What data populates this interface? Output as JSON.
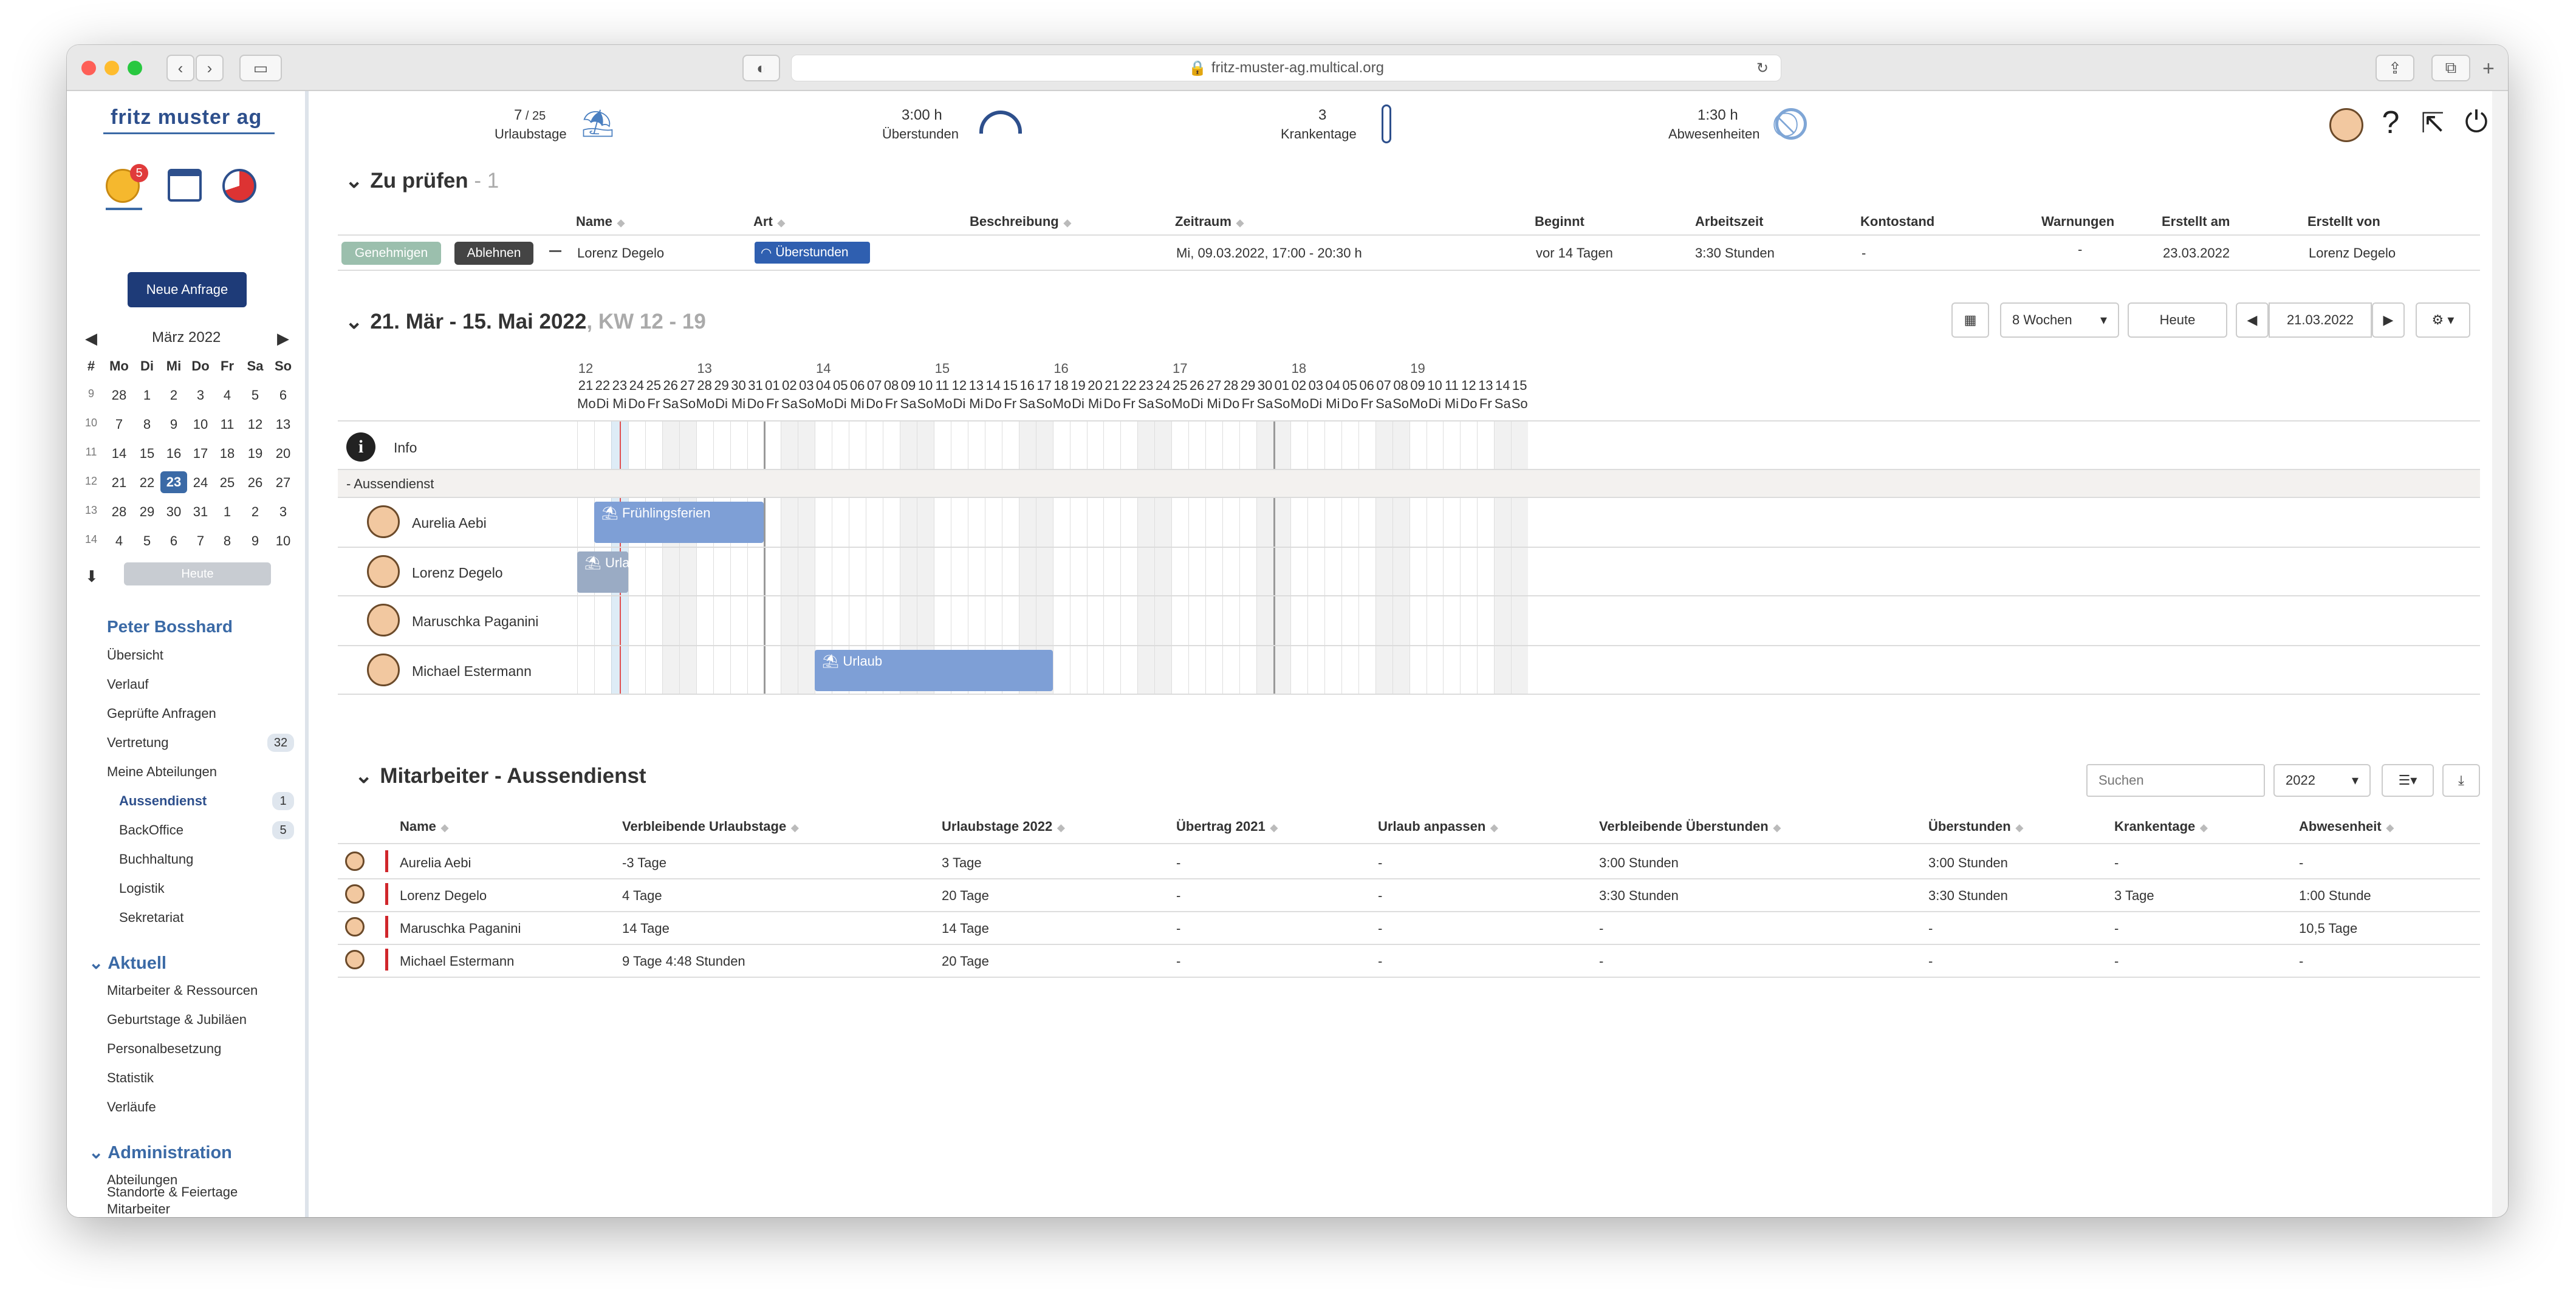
{
  "browser": {
    "url": "fritz-muster-ag.multical.org"
  },
  "sidebar": {
    "logo": "fritz muster ag",
    "notif_count": "5",
    "new_request": "Neue Anfrage",
    "calendar": {
      "month": "März 2022",
      "week_header": "#",
      "days": [
        "Mo",
        "Di",
        "Mi",
        "Do",
        "Fr",
        "Sa",
        "So"
      ],
      "weeks": [
        {
          "kw": "9",
          "d": [
            "28",
            "1",
            "2",
            "3",
            "4",
            "5",
            "6"
          ]
        },
        {
          "kw": "10",
          "d": [
            "7",
            "8",
            "9",
            "10",
            "11",
            "12",
            "13"
          ]
        },
        {
          "kw": "11",
          "d": [
            "14",
            "15",
            "16",
            "17",
            "18",
            "19",
            "20"
          ]
        },
        {
          "kw": "12",
          "d": [
            "21",
            "22",
            "23",
            "24",
            "25",
            "26",
            "27"
          ]
        },
        {
          "kw": "13",
          "d": [
            "28",
            "29",
            "30",
            "31",
            "1",
            "2",
            "3"
          ]
        },
        {
          "kw": "14",
          "d": [
            "4",
            "5",
            "6",
            "7",
            "8",
            "9",
            "10"
          ]
        }
      ],
      "today_btn": "Heute"
    },
    "user": "Peter Bosshard",
    "user_items": [
      "Übersicht",
      "Verlauf",
      "Geprüfte Anfragen",
      "Vertretung",
      "Meine Abteilungen"
    ],
    "vertretung_count": "32",
    "departments": [
      {
        "name": "Aussendienst",
        "count": "1"
      },
      {
        "name": "BackOffice",
        "count": "5"
      },
      {
        "name": "Buchhaltung",
        "count": ""
      },
      {
        "name": "Logistik",
        "count": ""
      },
      {
        "name": "Sekretariat",
        "count": ""
      }
    ],
    "aktuell_title": "Aktuell",
    "aktuell_items": [
      "Mitarbeiter & Ressourcen",
      "Geburtstage & Jubiläen",
      "Personalbesetzung",
      "Statistik",
      "Verläufe"
    ],
    "admin_title": "Administration",
    "admin_items": [
      "Abteilungen",
      "Mitarbeiter",
      "Standorte & Feiertage"
    ]
  },
  "topstats": [
    {
      "value": "7",
      "suffix": " / 25",
      "label": "Urlaubstage",
      "icon": "beach-icon"
    },
    {
      "value": "3:00 h",
      "suffix": "",
      "label": "Überstunden",
      "icon": "gauge-icon"
    },
    {
      "value": "3",
      "suffix": "",
      "label": "Krankentage",
      "icon": "thermometer-icon"
    },
    {
      "value": "1:30 h",
      "suffix": "",
      "label": "Abwesenheiten",
      "icon": "blocked-icon"
    }
  ],
  "review": {
    "title": "Zu prüfen",
    "count": " - 1",
    "columns": [
      "Name",
      "Art",
      "Beschreibung",
      "Zeitraum",
      "Beginnt",
      "Arbeitszeit",
      "Kontostand",
      "Warnungen",
      "Erstellt am",
      "Erstellt von"
    ],
    "row": {
      "approve": "Genehmigen",
      "reject": "Ablehnen",
      "name": "Lorenz Degelo",
      "art": "Überstunden",
      "beschreibung": "",
      "zeitraum": "Mi, 09.03.2022, 17:00 - 20:30 h",
      "beginnt": "vor 14 Tagen",
      "arbeitszeit": "3:30 Stunden",
      "kontostand": "-",
      "warnungen": "-",
      "erstellt_am": "23.03.2022",
      "erstellt_von": "Lorenz Degelo"
    }
  },
  "timeline": {
    "title": "21. Mär - 15. Mai 2022",
    "kw": ", KW 12 - 19",
    "range_select": "8 Wochen",
    "today_btn": "Heute",
    "date_input": "21.03.2022",
    "info_label": "Info",
    "group_label": "- Aussendienst",
    "weeks": [
      "12",
      "13",
      "14",
      "15",
      "16",
      "17",
      "18",
      "19"
    ],
    "dates": [
      "21",
      "22",
      "23",
      "24",
      "25",
      "26",
      "27",
      "28",
      "29",
      "30",
      "31",
      "01",
      "02",
      "03",
      "04",
      "05",
      "06",
      "07",
      "08",
      "09",
      "10",
      "11",
      "12",
      "13",
      "14",
      "15",
      "16",
      "17",
      "18",
      "19",
      "20",
      "21",
      "22",
      "23",
      "24",
      "25",
      "26",
      "27",
      "28",
      "29",
      "30",
      "01",
      "02",
      "03",
      "04",
      "05",
      "06",
      "07",
      "08",
      "09",
      "10",
      "11",
      "12",
      "13",
      "14",
      "15"
    ],
    "weekdays": [
      "Mo",
      "Di",
      "Mi",
      "Do",
      "Fr",
      "Sa",
      "So"
    ],
    "people": [
      "Aurelia Aebi",
      "Lorenz Degelo",
      "Maruschka Paganini",
      "Michael Estermann"
    ],
    "events": [
      {
        "label": "Frühlingsferien",
        "person": 0,
        "start": 1,
        "end": 11
      },
      {
        "label": "Urlaub",
        "person": 1,
        "start": 0,
        "end": 3
      },
      {
        "label": "Urlaub",
        "person": 3,
        "start": 14,
        "end": 28
      }
    ]
  },
  "employees": {
    "title": "Mitarbeiter - Aussendienst",
    "search_placeholder": "Suchen",
    "year": "2022",
    "columns": [
      "Name",
      "Verbleibende Urlaubstage",
      "Urlaubstage 2022",
      "Übertrag 2021",
      "Urlaub anpassen",
      "Verbleibende Überstunden",
      "Überstunden",
      "Krankentage",
      "Abwesenheit"
    ],
    "rows": [
      [
        "Aurelia Aebi",
        "-3 Tage",
        "3 Tage",
        "-",
        "-",
        "3:00 Stunden",
        "3:00 Stunden",
        "-",
        "-"
      ],
      [
        "Lorenz Degelo",
        "4 Tage",
        "20 Tage",
        "-",
        "-",
        "3:30 Stunden",
        "3:30 Stunden",
        "3 Tage",
        "1:00 Stunde"
      ],
      [
        "Maruschka Paganini",
        "14 Tage",
        "14 Tage",
        "-",
        "-",
        "-",
        "-",
        "-",
        "10,5 Tage"
      ],
      [
        "Michael Estermann",
        "9 Tage 4:48 Stunden",
        "20 Tage",
        "-",
        "-",
        "-",
        "-",
        "-",
        "-"
      ]
    ]
  }
}
